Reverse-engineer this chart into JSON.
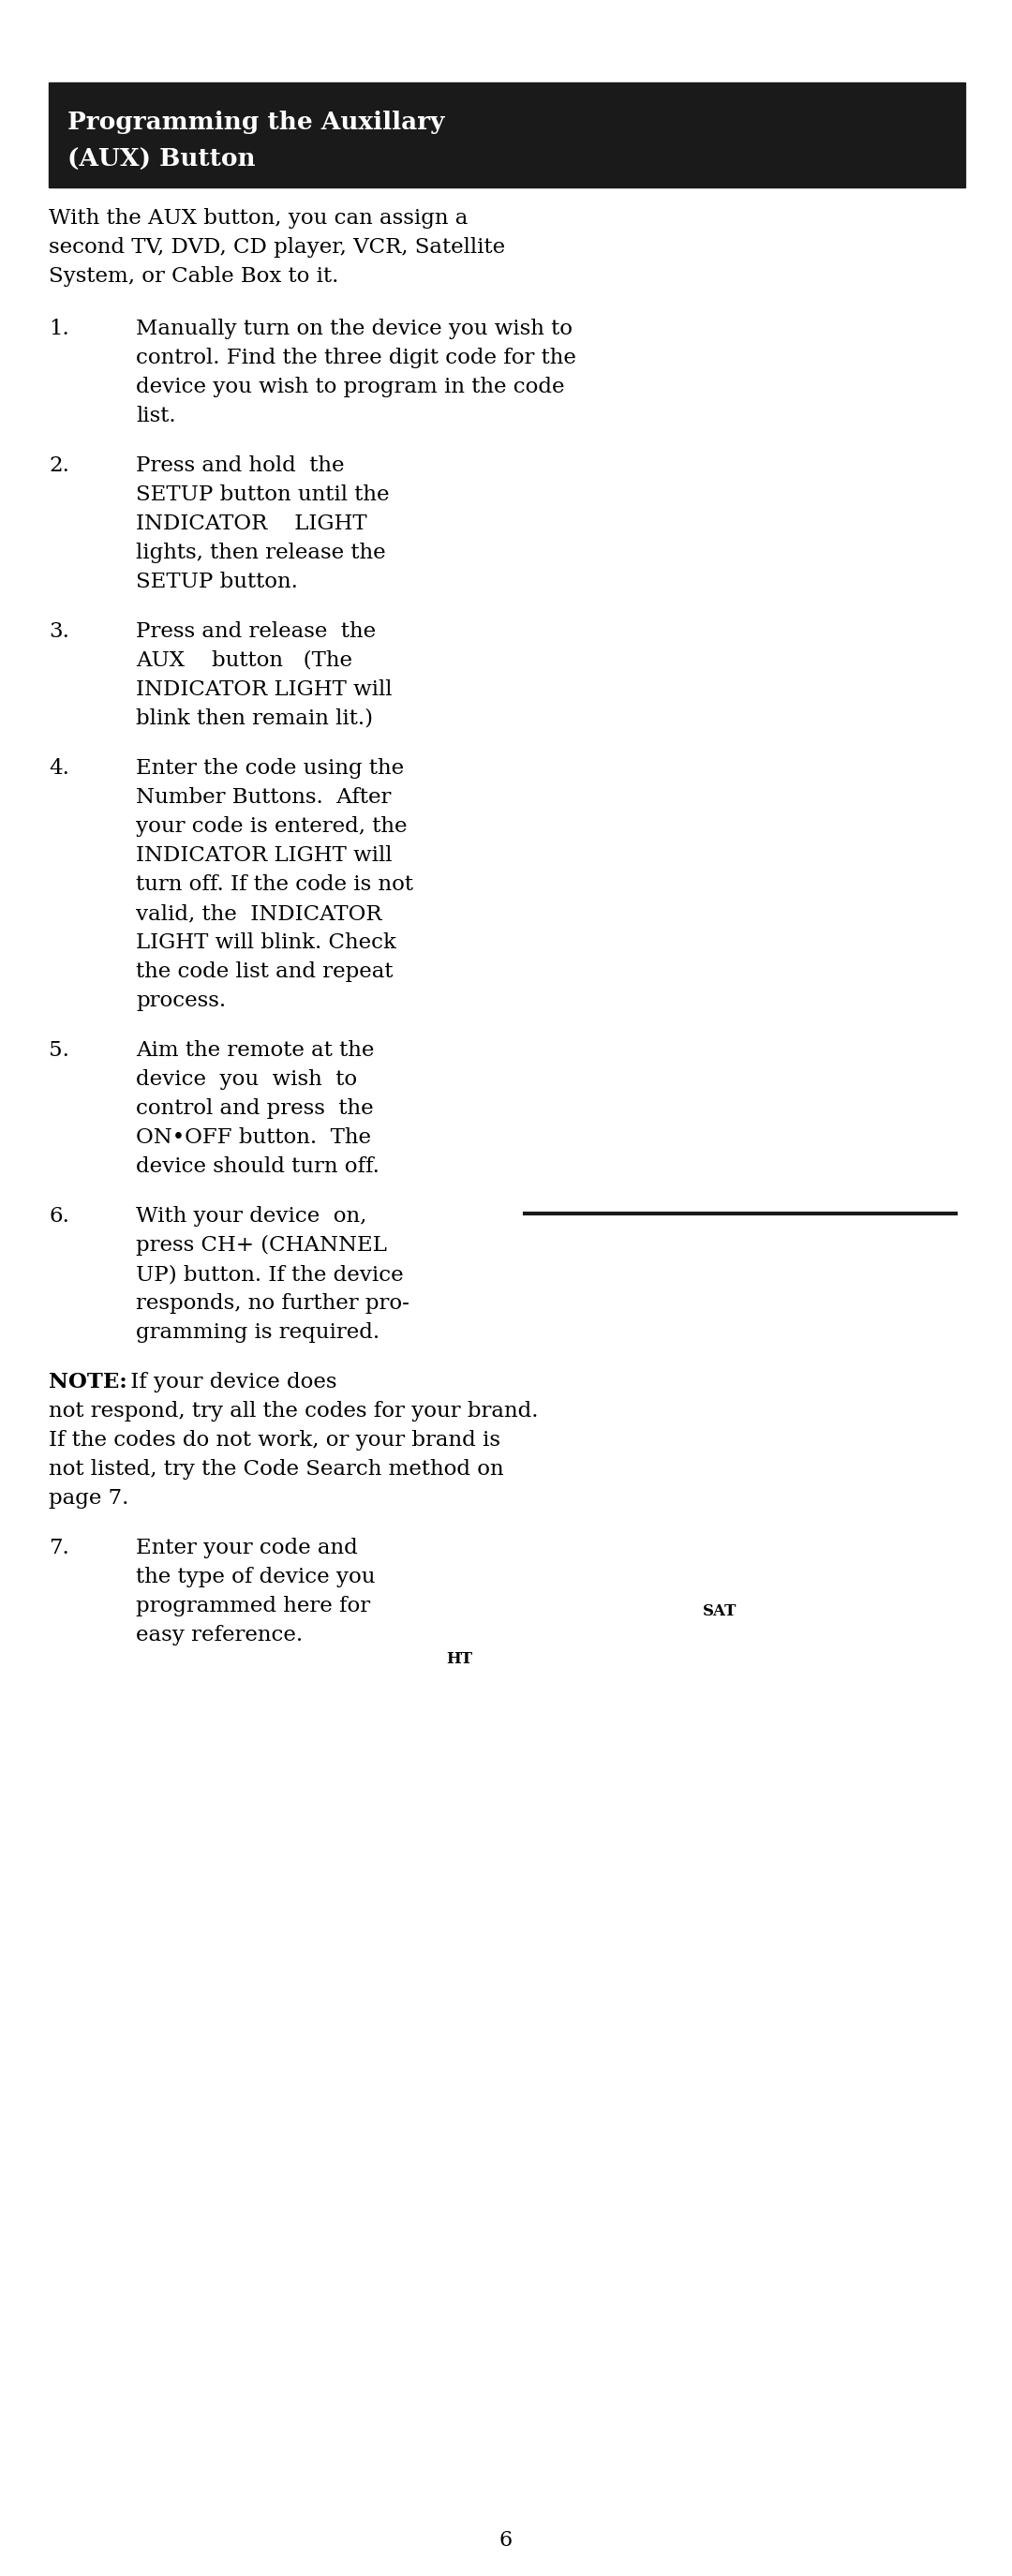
{
  "bg_color": "#ffffff",
  "header_bg": "#1a1a1a",
  "header_line1": "Programming the Auxillary",
  "header_line2": "(AUX) Button",
  "header_text_color": "#ffffff",
  "header_fontsize": 19,
  "body_fontsize": 16.5,
  "note_bold_fontsize": 16.5,
  "page_number": "6",
  "page_number_fontsize": 16,
  "intro_text": "With the AUX button, you can assign a\nsecond TV, DVD, CD player, VCR, Satellite\nSystem, or Cable Box to it.",
  "steps": [
    {
      "num": "1.",
      "lines": [
        "Manually turn on the device you wish to",
        "control. Find the three digit code for the",
        "device you wish to program in the code",
        "list."
      ]
    },
    {
      "num": "2.",
      "lines": [
        "Press and hold  the",
        "SETUP button until the",
        "INDICATOR    LIGHT",
        "lights, then release the",
        "SETUP button."
      ]
    },
    {
      "num": "3.",
      "lines": [
        "Press and release  the",
        "AUX    button   (The",
        "INDICATOR LIGHT will",
        "blink then remain lit.)"
      ]
    },
    {
      "num": "4.",
      "lines": [
        "Enter the code using the",
        "Number Buttons.  After",
        "your code is entered, the",
        "INDICATOR LIGHT will",
        "turn off. If the code is not",
        "valid, the  INDICATOR",
        "LIGHT will blink. Check",
        "the code list and repeat",
        "process."
      ]
    },
    {
      "num": "5.",
      "lines": [
        "Aim the remote at the",
        "device  you  wish  to",
        "control and press  the",
        "ON•OFF button.  The",
        "device should turn off."
      ]
    },
    {
      "num": "6.",
      "lines": [
        "With your device  on,",
        "press CH+ (CHANNEL",
        "UP) button. If the device",
        "responds, no further pro-",
        "gramming is required."
      ]
    }
  ],
  "note_bold": "NOTE:",
  "note_rest_line1": " If your device does",
  "note_lines": [
    "not respond, try all the codes for your brand.",
    "If the codes do not work, or your brand is",
    "not listed, try the Code Search method on",
    "page 7."
  ],
  "step7": {
    "num": "7.",
    "lines": [
      "Enter your code and",
      "the type of device you",
      "programmed here for",
      "easy reference."
    ]
  },
  "sat_label": "SAT",
  "ht_label": "HT",
  "line_color": "#1a1a1a"
}
